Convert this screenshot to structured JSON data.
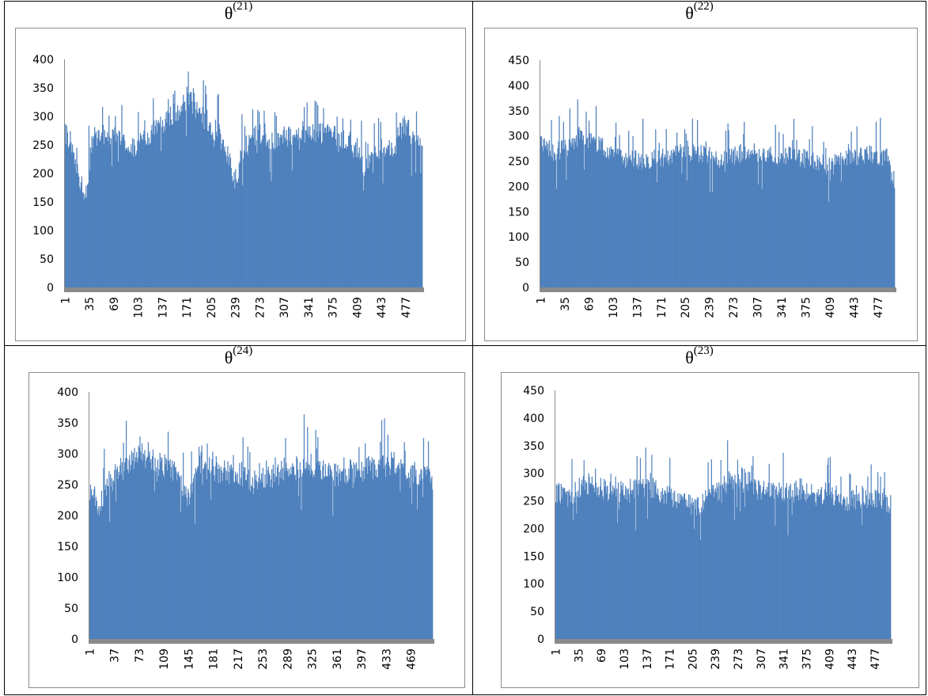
{
  "panels": [
    {
      "id": "p21",
      "title_base": "θ",
      "title_sup": "(21)",
      "chart_data": {
        "type": "bar",
        "title": "θ(21)",
        "n": 500,
        "ylim": [
          0,
          400
        ],
        "yticks": [
          0,
          50,
          100,
          150,
          200,
          250,
          300,
          350,
          400
        ],
        "xticks": [
          1,
          35,
          69,
          103,
          137,
          171,
          205,
          239,
          273,
          307,
          341,
          375,
          409,
          443,
          477
        ],
        "color": "#4f81bd",
        "keypoints": [
          [
            1,
            270
          ],
          [
            8,
            255
          ],
          [
            12,
            230
          ],
          [
            18,
            200
          ],
          [
            22,
            175
          ],
          [
            26,
            150
          ],
          [
            30,
            165
          ],
          [
            34,
            215
          ],
          [
            40,
            265
          ],
          [
            50,
            270
          ],
          [
            70,
            265
          ],
          [
            90,
            255
          ],
          [
            100,
            245
          ],
          [
            110,
            260
          ],
          [
            130,
            280
          ],
          [
            150,
            300
          ],
          [
            165,
            320
          ],
          [
            172,
            335
          ],
          [
            180,
            320
          ],
          [
            200,
            290
          ],
          [
            215,
            270
          ],
          [
            225,
            240
          ],
          [
            235,
            200
          ],
          [
            240,
            185
          ],
          [
            248,
            240
          ],
          [
            258,
            255
          ],
          [
            270,
            270
          ],
          [
            290,
            260
          ],
          [
            310,
            265
          ],
          [
            340,
            275
          ],
          [
            360,
            270
          ],
          [
            380,
            265
          ],
          [
            400,
            255
          ],
          [
            412,
            230
          ],
          [
            420,
            210
          ],
          [
            430,
            230
          ],
          [
            445,
            250
          ],
          [
            460,
            240
          ],
          [
            470,
            280
          ],
          [
            478,
            285
          ],
          [
            485,
            265
          ],
          [
            495,
            255
          ],
          [
            500,
            230
          ]
        ],
        "seed": 21
      }
    },
    {
      "id": "p22",
      "title_base": "θ",
      "title_sup": "(22)",
      "chart_data": {
        "type": "bar",
        "title": "θ(22)",
        "n": 500,
        "ylim": [
          0,
          450
        ],
        "yticks": [
          0,
          50,
          100,
          150,
          200,
          250,
          300,
          350,
          400,
          450
        ],
        "xticks": [
          1,
          35,
          69,
          103,
          137,
          171,
          205,
          239,
          273,
          307,
          341,
          375,
          409,
          443,
          477
        ],
        "color": "#4f81bd",
        "keypoints": [
          [
            1,
            280
          ],
          [
            20,
            270
          ],
          [
            40,
            275
          ],
          [
            55,
            300
          ],
          [
            65,
            290
          ],
          [
            90,
            280
          ],
          [
            120,
            255
          ],
          [
            150,
            250
          ],
          [
            180,
            260
          ],
          [
            200,
            270
          ],
          [
            220,
            265
          ],
          [
            250,
            255
          ],
          [
            280,
            265
          ],
          [
            300,
            270
          ],
          [
            330,
            260
          ],
          [
            360,
            260
          ],
          [
            390,
            250
          ],
          [
            410,
            240
          ],
          [
            430,
            255
          ],
          [
            450,
            260
          ],
          [
            470,
            265
          ],
          [
            490,
            255
          ],
          [
            500,
            185
          ]
        ],
        "seed": 22
      }
    },
    {
      "id": "p24",
      "title_base": "θ",
      "title_sup": "(24)",
      "chart_data": {
        "type": "bar",
        "title": "θ(24)",
        "n": 500,
        "ylim": [
          0,
          400
        ],
        "yticks": [
          0,
          50,
          100,
          150,
          200,
          250,
          300,
          350,
          400
        ],
        "xticks": [
          1,
          37,
          73,
          109,
          145,
          181,
          217,
          253,
          289,
          325,
          361,
          397,
          433,
          469
        ],
        "color": "#4f81bd",
        "keypoints": [
          [
            1,
            240
          ],
          [
            15,
            215
          ],
          [
            25,
            240
          ],
          [
            40,
            270
          ],
          [
            60,
            285
          ],
          [
            75,
            310
          ],
          [
            90,
            295
          ],
          [
            110,
            275
          ],
          [
            130,
            265
          ],
          [
            145,
            225
          ],
          [
            155,
            260
          ],
          [
            175,
            275
          ],
          [
            200,
            270
          ],
          [
            220,
            265
          ],
          [
            240,
            250
          ],
          [
            260,
            260
          ],
          [
            290,
            270
          ],
          [
            320,
            285
          ],
          [
            340,
            270
          ],
          [
            360,
            265
          ],
          [
            380,
            270
          ],
          [
            400,
            275
          ],
          [
            420,
            280
          ],
          [
            450,
            285
          ],
          [
            470,
            270
          ],
          [
            490,
            265
          ],
          [
            500,
            260
          ]
        ],
        "seed": 24
      }
    },
    {
      "id": "p23",
      "title_base": "θ",
      "title_sup": "(23)",
      "chart_data": {
        "type": "bar",
        "title": "θ(23)",
        "n": 500,
        "ylim": [
          0,
          450
        ],
        "yticks": [
          0,
          50,
          100,
          150,
          200,
          250,
          300,
          350,
          400,
          450
        ],
        "xticks": [
          1,
          35,
          69,
          103,
          137,
          171,
          205,
          239,
          273,
          307,
          341,
          375,
          409,
          443,
          477
        ],
        "color": "#4f81bd",
        "keypoints": [
          [
            1,
            265
          ],
          [
            20,
            255
          ],
          [
            40,
            280
          ],
          [
            60,
            275
          ],
          [
            90,
            265
          ],
          [
            110,
            270
          ],
          [
            140,
            275
          ],
          [
            170,
            260
          ],
          [
            190,
            250
          ],
          [
            210,
            235
          ],
          [
            225,
            255
          ],
          [
            250,
            275
          ],
          [
            270,
            295
          ],
          [
            285,
            290
          ],
          [
            300,
            270
          ],
          [
            330,
            265
          ],
          [
            360,
            265
          ],
          [
            390,
            260
          ],
          [
            410,
            265
          ],
          [
            430,
            250
          ],
          [
            450,
            255
          ],
          [
            470,
            255
          ],
          [
            490,
            250
          ],
          [
            500,
            245
          ]
        ],
        "seed": 23
      }
    }
  ]
}
